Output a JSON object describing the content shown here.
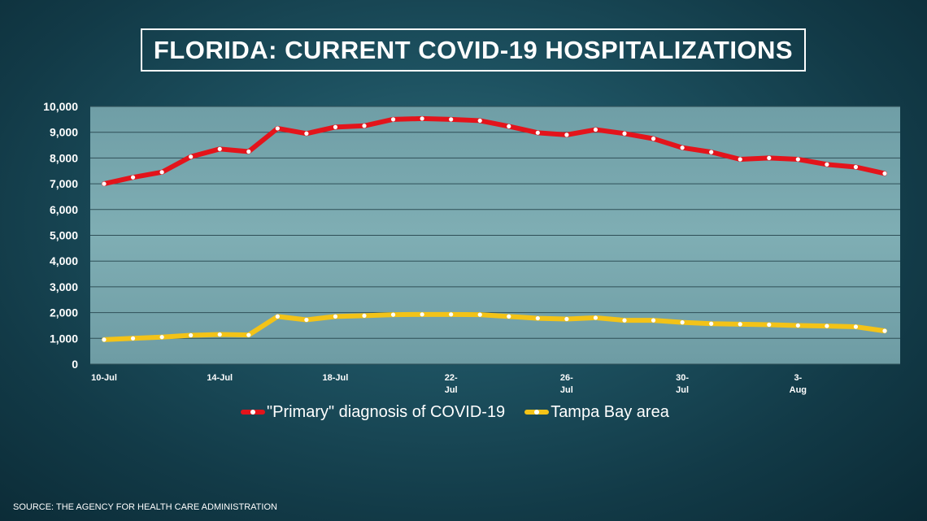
{
  "header": {
    "title": "FLORIDA: CURRENT COVID-19 HOSPITALIZATIONS"
  },
  "footer": {
    "source": "SOURCE: THE AGENCY FOR HEALTH CARE ADMINISTRATION"
  },
  "colors": {
    "primary_series": "#e3141b",
    "tampa_series": "#f3c318",
    "grid": "#2f4f57",
    "marker": "#ffffff"
  },
  "chart_data": {
    "type": "line",
    "title": "FLORIDA: CURRENT COVID-19 HOSPITALIZATIONS",
    "xlabel": "",
    "ylabel": "",
    "ylim": [
      0,
      10000
    ],
    "yticks": [
      "0",
      "1,000",
      "2,000",
      "3,000",
      "4,000",
      "5,000",
      "6,000",
      "7,000",
      "8,000",
      "9,000",
      "10,000"
    ],
    "x": [
      "10-Jul",
      "11-Jul",
      "12-Jul",
      "13-Jul",
      "14-Jul",
      "15-Jul",
      "16-Jul",
      "17-Jul",
      "18-Jul",
      "19-Jul",
      "20-Jul",
      "21-Jul",
      "22-Jul",
      "23-Jul",
      "24-Jul",
      "25-Jul",
      "26-Jul",
      "27-Jul",
      "28-Jul",
      "29-Jul",
      "30-Jul",
      "31-Jul",
      "1-Aug",
      "2-Aug",
      "3-Aug",
      "4-Aug",
      "5-Aug",
      "6-Aug"
    ],
    "xtick_labels": [
      {
        "index": 0,
        "lines": [
          "10-Jul"
        ]
      },
      {
        "index": 4,
        "lines": [
          "14-Jul"
        ]
      },
      {
        "index": 8,
        "lines": [
          "18-Jul"
        ]
      },
      {
        "index": 12,
        "lines": [
          "22-",
          "Jul"
        ]
      },
      {
        "index": 16,
        "lines": [
          "26-",
          "Jul"
        ]
      },
      {
        "index": 20,
        "lines": [
          "30-",
          "Jul"
        ]
      },
      {
        "index": 24,
        "lines": [
          "3-",
          "Aug"
        ]
      }
    ],
    "series": [
      {
        "name": "\"Primary\" diagnosis of COVID-19",
        "color": "#e3141b",
        "values": [
          7000,
          7250,
          7450,
          8050,
          8350,
          8250,
          9150,
          8950,
          9200,
          9250,
          9500,
          9530,
          9500,
          9450,
          9230,
          8980,
          8900,
          9100,
          8950,
          8750,
          8400,
          8230,
          7950,
          8000,
          7950,
          7750,
          7650,
          7400
        ]
      },
      {
        "name": "Tampa Bay area",
        "color": "#f3c318",
        "values": [
          950,
          1000,
          1050,
          1120,
          1150,
          1130,
          1850,
          1720,
          1850,
          1880,
          1920,
          1930,
          1930,
          1920,
          1850,
          1780,
          1750,
          1800,
          1700,
          1700,
          1620,
          1570,
          1550,
          1530,
          1500,
          1480,
          1450,
          1290
        ]
      }
    ],
    "legend": "bottom",
    "grid": true
  }
}
